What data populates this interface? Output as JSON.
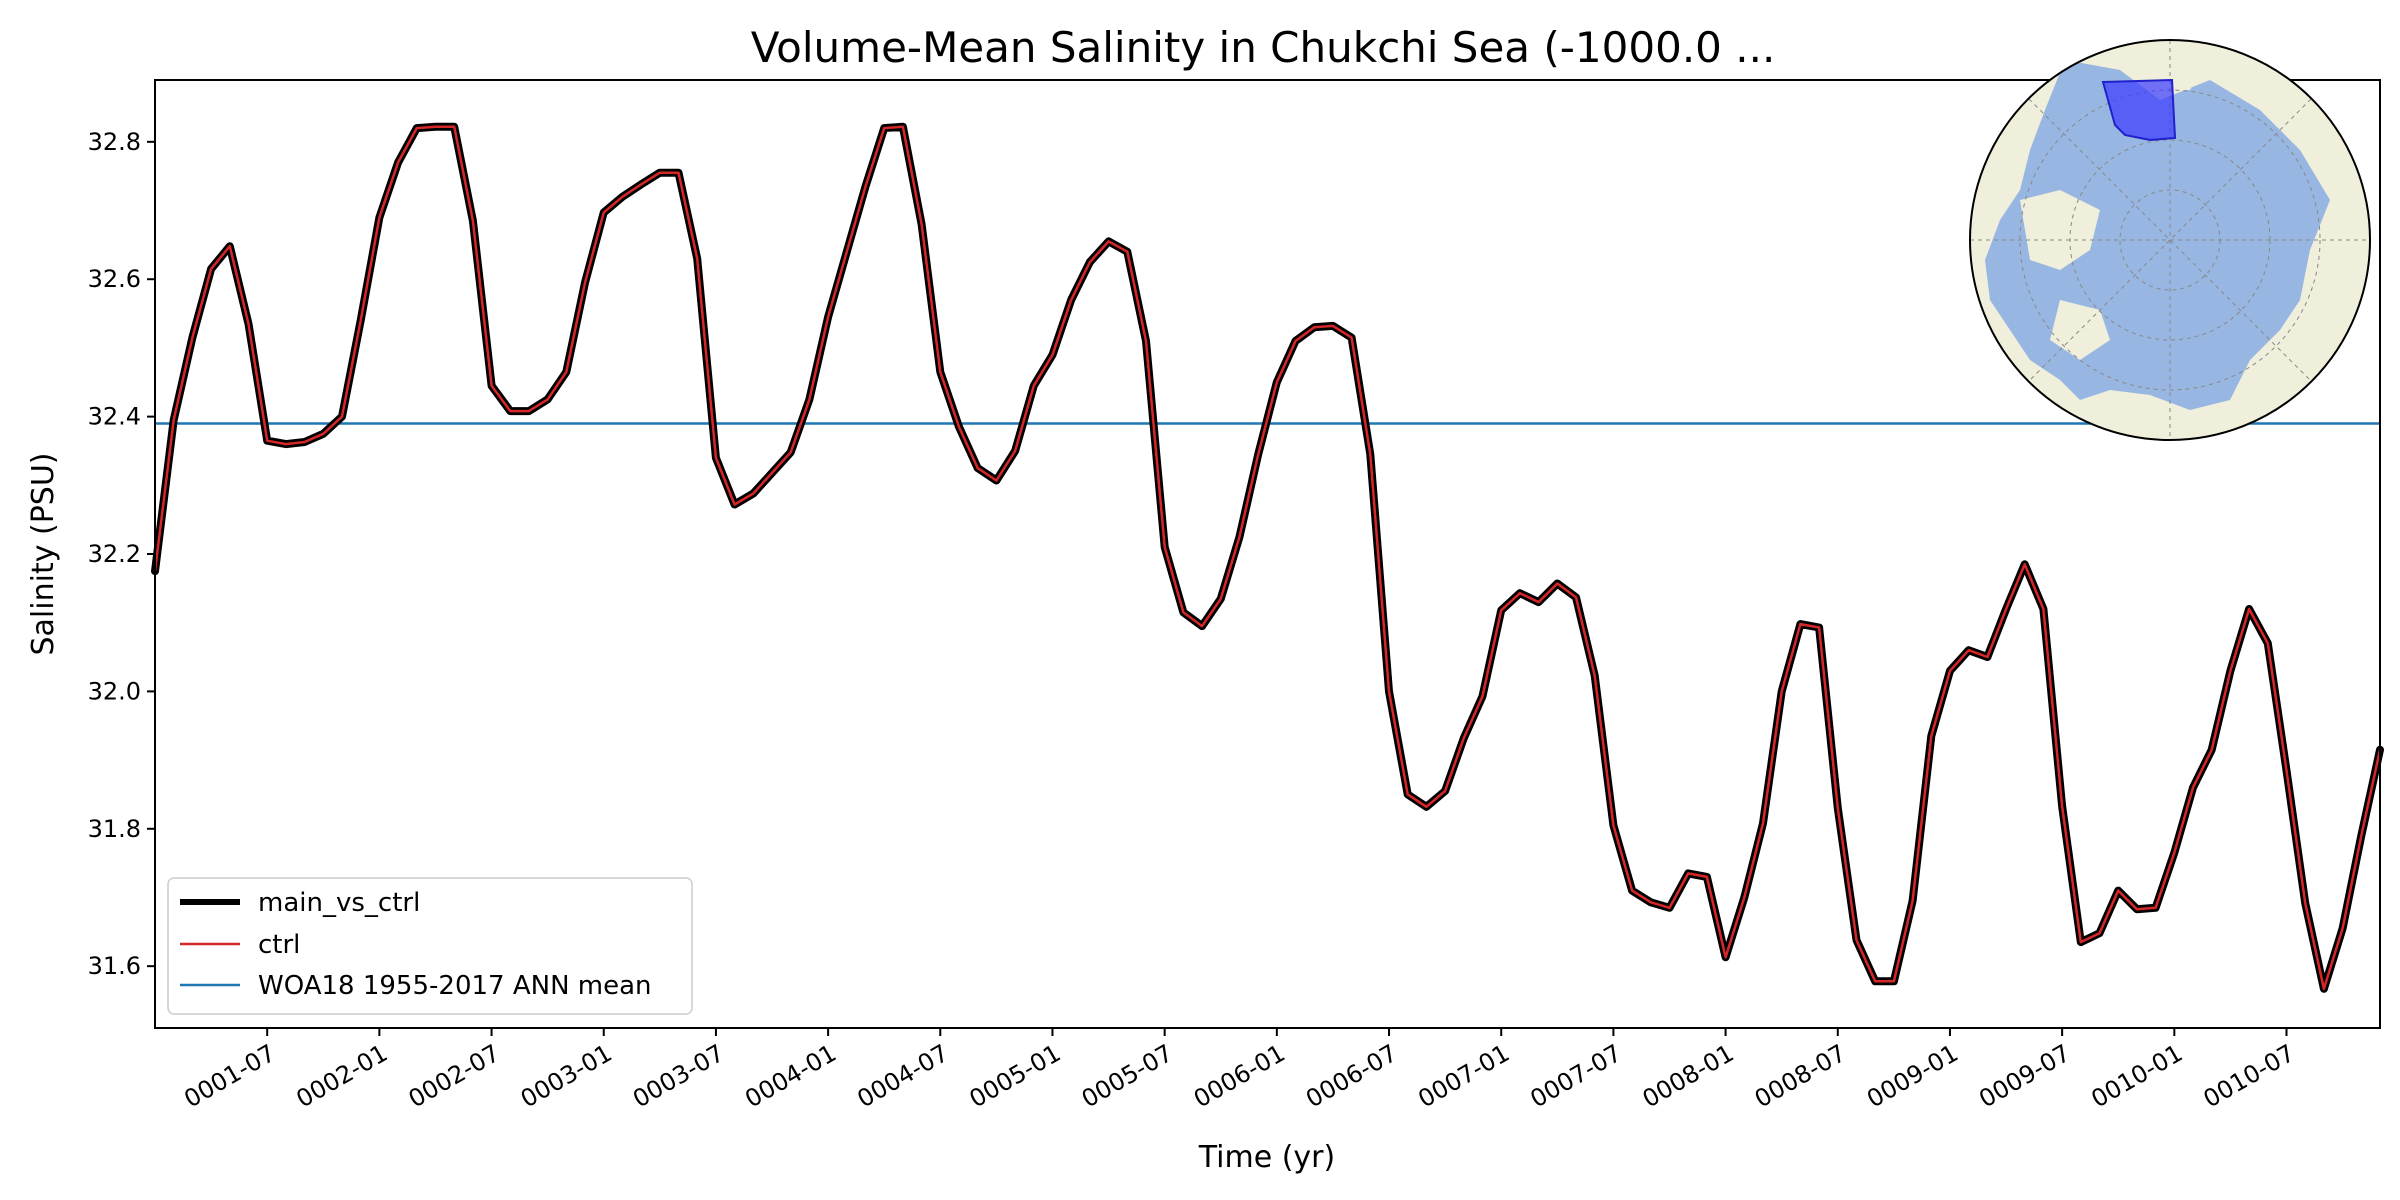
{
  "chart_data": {
    "type": "line",
    "title": "Volume-Mean Salinity in Chukchi Sea (-1000.0 ...",
    "xlabel": "Time (yr)",
    "ylabel": "Salinity (PSU)",
    "xlim_months": [
      1,
      120
    ],
    "ylim": [
      31.51,
      32.89
    ],
    "x_ticks": [
      {
        "month": 7,
        "label": "0001-07"
      },
      {
        "month": 13,
        "label": "0002-01"
      },
      {
        "month": 19,
        "label": "0002-07"
      },
      {
        "month": 25,
        "label": "0003-01"
      },
      {
        "month": 31,
        "label": "0003-07"
      },
      {
        "month": 37,
        "label": "0004-01"
      },
      {
        "month": 43,
        "label": "0004-07"
      },
      {
        "month": 49,
        "label": "0005-01"
      },
      {
        "month": 55,
        "label": "0005-07"
      },
      {
        "month": 61,
        "label": "0006-01"
      },
      {
        "month": 67,
        "label": "0006-07"
      },
      {
        "month": 73,
        "label": "0007-01"
      },
      {
        "month": 79,
        "label": "0007-07"
      },
      {
        "month": 85,
        "label": "0008-01"
      },
      {
        "month": 91,
        "label": "0008-07"
      },
      {
        "month": 97,
        "label": "0009-01"
      },
      {
        "month": 103,
        "label": "0009-07"
      },
      {
        "month": 109,
        "label": "0010-01"
      },
      {
        "month": 115,
        "label": "0010-07"
      }
    ],
    "y_ticks": [
      31.6,
      31.8,
      32.0,
      32.2,
      32.4,
      32.6,
      32.8
    ],
    "y_tick_labels": [
      "31.6",
      "31.8",
      "32.0",
      "32.2",
      "32.4",
      "32.6",
      "32.8"
    ],
    "series": [
      {
        "name": "main_vs_ctrl",
        "color": "#000000",
        "style": "thick",
        "values": "same_as_ctrl"
      },
      {
        "name": "ctrl",
        "color": "#d62728",
        "style": "thin",
        "values": [
          32.175,
          32.395,
          32.515,
          32.615,
          32.648,
          32.535,
          32.365,
          32.36,
          32.363,
          32.375,
          32.4,
          32.54,
          32.69,
          32.77,
          32.82,
          32.822,
          32.822,
          32.685,
          32.445,
          32.408,
          32.408,
          32.425,
          32.465,
          32.595,
          32.697,
          32.72,
          32.738,
          32.755,
          32.755,
          32.63,
          32.34,
          32.272,
          32.288,
          32.318,
          32.348,
          32.425,
          32.545,
          32.64,
          32.735,
          32.82,
          32.822,
          32.68,
          32.465,
          32.385,
          32.325,
          32.307,
          32.35,
          32.445,
          32.49,
          32.57,
          32.625,
          32.655,
          32.64,
          32.51,
          32.21,
          32.115,
          32.095,
          32.135,
          32.225,
          32.345,
          32.45,
          32.51,
          32.53,
          32.532,
          32.515,
          32.345,
          32.0,
          31.85,
          31.832,
          31.855,
          31.932,
          31.993,
          32.118,
          32.143,
          32.13,
          32.157,
          32.137,
          32.023,
          31.805,
          31.71,
          31.693,
          31.685,
          31.735,
          31.73,
          31.613,
          31.7,
          31.808,
          32.0,
          32.098,
          32.093,
          31.83,
          31.638,
          31.578,
          31.578,
          31.695,
          31.935,
          32.03,
          32.06,
          32.05,
          32.12,
          32.185,
          32.12,
          31.833,
          31.635,
          31.648,
          31.71,
          31.683,
          31.685,
          31.765,
          31.86,
          31.915,
          32.03,
          32.12,
          32.07,
          31.885,
          31.692,
          31.567,
          31.655,
          31.79,
          31.915
        ]
      },
      {
        "name": "WOA18 1955-2017 ANN mean",
        "color": "#1f77b4",
        "style": "hline",
        "value": 32.39
      }
    ],
    "legend": {
      "position": "lower-left",
      "entries": [
        {
          "label": "main_vs_ctrl",
          "color": "#000000"
        },
        {
          "label": "ctrl",
          "color": "#d62728"
        },
        {
          "label": "WOA18 1955-2017 ANN mean",
          "color": "#1f77b4"
        }
      ]
    },
    "inset": {
      "description_name": "arctic-polar-map",
      "region_highlight_color": "#3a3aff",
      "ocean_color": "#97b6e1",
      "land_color": "#efefdb"
    }
  }
}
